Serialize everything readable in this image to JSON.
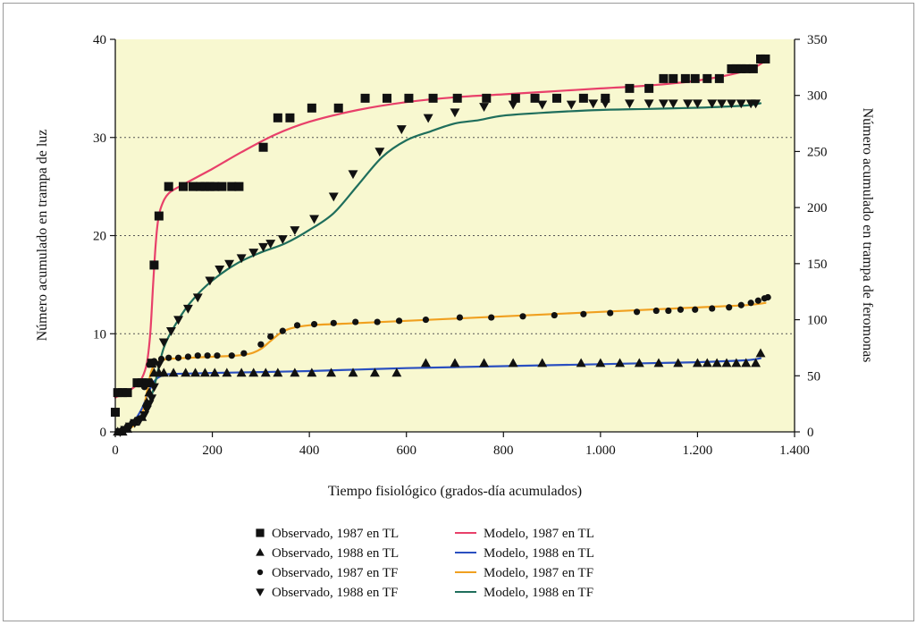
{
  "chart_data": {
    "type": "line",
    "xlabel": "Tiempo fisiológico (grados-día acumulados)",
    "ylabel_left": "Número acumulado en trampa de luz",
    "ylabel_right": "Número acumulado en trampa de feromonas",
    "xlim": [
      0,
      1400
    ],
    "ylim_left": [
      0,
      40
    ],
    "ylim_right": [
      0,
      350
    ],
    "x_ticks": [
      {
        "v": 0,
        "label": "0"
      },
      {
        "v": 200,
        "label": "200"
      },
      {
        "v": 400,
        "label": "400"
      },
      {
        "v": 600,
        "label": "600"
      },
      {
        "v": 800,
        "label": "800"
      },
      {
        "v": 1000,
        "label": "1.000"
      },
      {
        "v": 1200,
        "label": "1.200"
      },
      {
        "v": 1400,
        "label": "1.400"
      }
    ],
    "y_left_ticks": [
      0,
      10,
      20,
      30,
      40
    ],
    "y_right_ticks": [
      0,
      50,
      100,
      150,
      200,
      250,
      300,
      350
    ],
    "grid": "dotted horizontal lines at left 10, 20, 30",
    "plot_background": "#f8f8d0",
    "legend": {
      "placement": "bottom-center",
      "items": [
        {
          "marker": "square",
          "label": "Observado, 1987 en TL"
        },
        {
          "line": "#e8406a",
          "label": "Modelo, 1987 en TL"
        },
        {
          "marker": "triangle-up",
          "label": "Observado, 1988 en TL"
        },
        {
          "line": "#2a4fc0",
          "label": "Modelo, 1988 en TL"
        },
        {
          "marker": "circle",
          "label": "Observado, 1987 en TF"
        },
        {
          "line": "#f0a020",
          "label": "Modelo, 1987 en TF"
        },
        {
          "marker": "triangle-down",
          "label": "Observado, 1988 en TF"
        },
        {
          "line": "#1f6e5c",
          "label": "Modelo, 1988 en TF"
        }
      ]
    },
    "series": [
      {
        "name": "Observado, 1987 en TL",
        "kind": "points",
        "marker": "square",
        "axis": "left",
        "x": [
          0,
          5,
          15,
          25,
          45,
          55,
          65,
          75,
          80,
          90,
          110,
          140,
          160,
          175,
          185,
          195,
          205,
          220,
          240,
          255,
          305,
          335,
          360,
          405,
          460,
          515,
          560,
          605,
          655,
          705,
          765,
          825,
          865,
          910,
          965,
          1010,
          1060,
          1100,
          1130,
          1150,
          1175,
          1195,
          1220,
          1245,
          1270,
          1280,
          1290,
          1300,
          1315,
          1330,
          1340
        ],
        "y": [
          2,
          4,
          4,
          4,
          5,
          5,
          5,
          7,
          17,
          22,
          25,
          25,
          25,
          25,
          25,
          25,
          25,
          25,
          25,
          25,
          29,
          32,
          32,
          33,
          33,
          34,
          34,
          34,
          34,
          34,
          34,
          34,
          34,
          34,
          34,
          34,
          35,
          35,
          36,
          36,
          36,
          36,
          36,
          36,
          37,
          37,
          37,
          37,
          37,
          38,
          38
        ]
      },
      {
        "name": "Modelo, 1987 en TL",
        "kind": "line",
        "color": "#e8406a",
        "axis": "left",
        "x": [
          0,
          20,
          40,
          55,
          65,
          72,
          78,
          83,
          88,
          95,
          110,
          140,
          200,
          260,
          330,
          400,
          500,
          600,
          700,
          800,
          900,
          1000,
          1100,
          1200,
          1300,
          1340
        ],
        "y": [
          3.5,
          4,
          4.6,
          5.5,
          7,
          10,
          15,
          19,
          21.5,
          23,
          24.3,
          25.2,
          26.8,
          28.5,
          30.3,
          31.6,
          32.8,
          33.6,
          34.1,
          34.4,
          34.7,
          35,
          35.3,
          35.8,
          36.8,
          37.8
        ]
      },
      {
        "name": "Observado, 1988 en TL",
        "kind": "points",
        "marker": "triangle-up",
        "axis": "left",
        "x": [
          5,
          15,
          25,
          40,
          55,
          65,
          70,
          75,
          80,
          90,
          100,
          120,
          145,
          165,
          185,
          205,
          230,
          260,
          285,
          310,
          335,
          370,
          405,
          445,
          490,
          535,
          580,
          640,
          700,
          760,
          820,
          880,
          960,
          1000,
          1040,
          1080,
          1120,
          1160,
          1200,
          1220,
          1240,
          1260,
          1280,
          1300,
          1320,
          1330
        ],
        "y": [
          0,
          0,
          0.3,
          1,
          1.5,
          3,
          4,
          5,
          6,
          6,
          6,
          6,
          6,
          6,
          6,
          6,
          6,
          6,
          6,
          6,
          6,
          6,
          6,
          6,
          6,
          6,
          6,
          7,
          7,
          7,
          7,
          7,
          7,
          7,
          7,
          7,
          7,
          7,
          7,
          7,
          7,
          7,
          7,
          7,
          7,
          8
        ]
      },
      {
        "name": "Modelo, 1988 en TL",
        "kind": "line",
        "color": "#2a4fc0",
        "axis": "left",
        "x": [
          0,
          20,
          40,
          55,
          65,
          75,
          85,
          100,
          120,
          200,
          300,
          400,
          500,
          600,
          700,
          800,
          900,
          1000,
          1100,
          1200,
          1300,
          1330
        ],
        "y": [
          0,
          0.3,
          1.2,
          2.4,
          3.6,
          4.7,
          5.4,
          5.8,
          5.9,
          6,
          6.1,
          6.2,
          6.35,
          6.5,
          6.6,
          6.7,
          6.8,
          6.9,
          7,
          7.1,
          7.3,
          7.5
        ]
      },
      {
        "name": "Observado, 1987 en TF",
        "kind": "points",
        "marker": "circle",
        "axis": "right",
        "x": [
          5,
          15,
          25,
          35,
          50,
          60,
          70,
          80,
          95,
          110,
          130,
          150,
          170,
          190,
          210,
          240,
          265,
          300,
          320,
          345,
          375,
          410,
          450,
          495,
          540,
          585,
          640,
          710,
          775,
          840,
          905,
          965,
          1020,
          1075,
          1115,
          1140,
          1165,
          1195,
          1230,
          1265,
          1290,
          1310,
          1325,
          1338,
          1345
        ],
        "y": [
          0,
          2,
          5,
          8,
          12,
          40,
          60,
          63,
          65,
          66,
          66,
          67,
          68,
          68,
          68,
          68,
          70,
          78,
          85,
          90,
          95,
          96,
          97,
          98,
          98,
          99,
          100,
          102,
          102,
          103,
          104,
          105,
          106,
          107,
          108,
          108,
          109,
          109,
          110,
          111,
          113,
          115,
          117,
          119,
          120
        ]
      },
      {
        "name": "Modelo, 1987 en TF",
        "kind": "line",
        "color": "#f0a020",
        "axis": "right",
        "x": [
          0,
          20,
          40,
          55,
          65,
          75,
          90,
          110,
          150,
          200,
          250,
          280,
          300,
          320,
          340,
          360,
          400,
          500,
          600,
          700,
          800,
          900,
          1000,
          1100,
          1200,
          1300,
          1340
        ],
        "y": [
          0,
          2,
          6,
          15,
          35,
          55,
          63,
          65,
          66,
          67,
          68,
          70,
          74,
          81,
          88,
          92,
          95,
          97,
          99,
          101,
          103,
          105,
          107,
          109,
          111,
          113,
          115
        ]
      },
      {
        "name": "Observado, 1988 en TF",
        "kind": "points",
        "marker": "triangle-down",
        "axis": "right",
        "x": [
          10,
          20,
          30,
          40,
          50,
          60,
          65,
          70,
          75,
          80,
          90,
          100,
          115,
          130,
          150,
          170,
          195,
          215,
          235,
          260,
          285,
          305,
          320,
          345,
          370,
          410,
          450,
          490,
          545,
          590,
          645,
          700,
          760,
          820,
          880,
          940,
          985,
          1010,
          1060,
          1100,
          1130,
          1150,
          1180,
          1200,
          1230,
          1250,
          1270,
          1290,
          1310,
          1320
        ],
        "y": [
          0,
          2,
          5,
          8,
          10,
          15,
          20,
          25,
          30,
          40,
          60,
          80,
          90,
          100,
          110,
          120,
          135,
          145,
          150,
          155,
          160,
          165,
          168,
          172,
          180,
          190,
          210,
          230,
          250,
          270,
          280,
          285,
          290,
          292,
          292,
          292,
          293,
          293,
          293,
          293,
          293,
          293,
          293,
          293,
          293,
          293,
          293,
          293,
          293,
          293
        ]
      },
      {
        "name": "Modelo, 1988 en TF",
        "kind": "line",
        "color": "#1f6e5c",
        "axis": "right",
        "x": [
          0,
          30,
          60,
          80,
          100,
          130,
          160,
          200,
          250,
          300,
          350,
          400,
          450,
          500,
          550,
          600,
          650,
          700,
          750,
          800,
          900,
          1000,
          1100,
          1200,
          1300,
          1330
        ],
        "y": [
          0,
          5,
          15,
          40,
          75,
          100,
          118,
          135,
          150,
          160,
          168,
          180,
          195,
          220,
          245,
          260,
          268,
          275,
          278,
          282,
          285,
          287,
          288,
          289,
          291,
          293
        ]
      }
    ]
  }
}
